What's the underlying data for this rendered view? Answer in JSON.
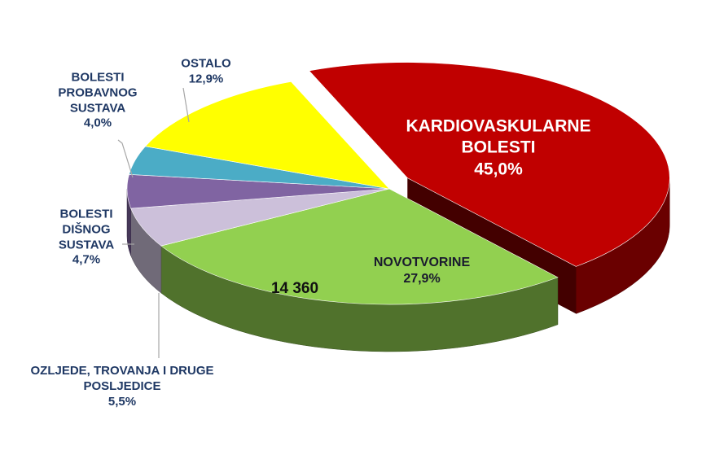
{
  "chart_data": {
    "type": "pie3d",
    "categories": [
      "KARDIOVASKULARNE BOLESTI",
      "NOVOTVORINE",
      "OZLJEDE, TROVANJA I DRUGE POSLJEDICE",
      "BOLESTI DIŠNOG SUSTAVA",
      "BOLESTI PROBAVNOG SUSTAVA",
      "OSTALO"
    ],
    "values": [
      45.0,
      27.9,
      5.5,
      4.7,
      4.0,
      12.9
    ],
    "value_labels": [
      "45,0%",
      "27,9%",
      "5,5%",
      "4,7%",
      "4,0%",
      "12,9%"
    ],
    "colors": [
      "#c00000",
      "#92d050",
      "#ccc0da",
      "#8064a2",
      "#4bacc6",
      "#ffff00"
    ],
    "exploded": [
      0
    ],
    "annotation": "14 360"
  }
}
